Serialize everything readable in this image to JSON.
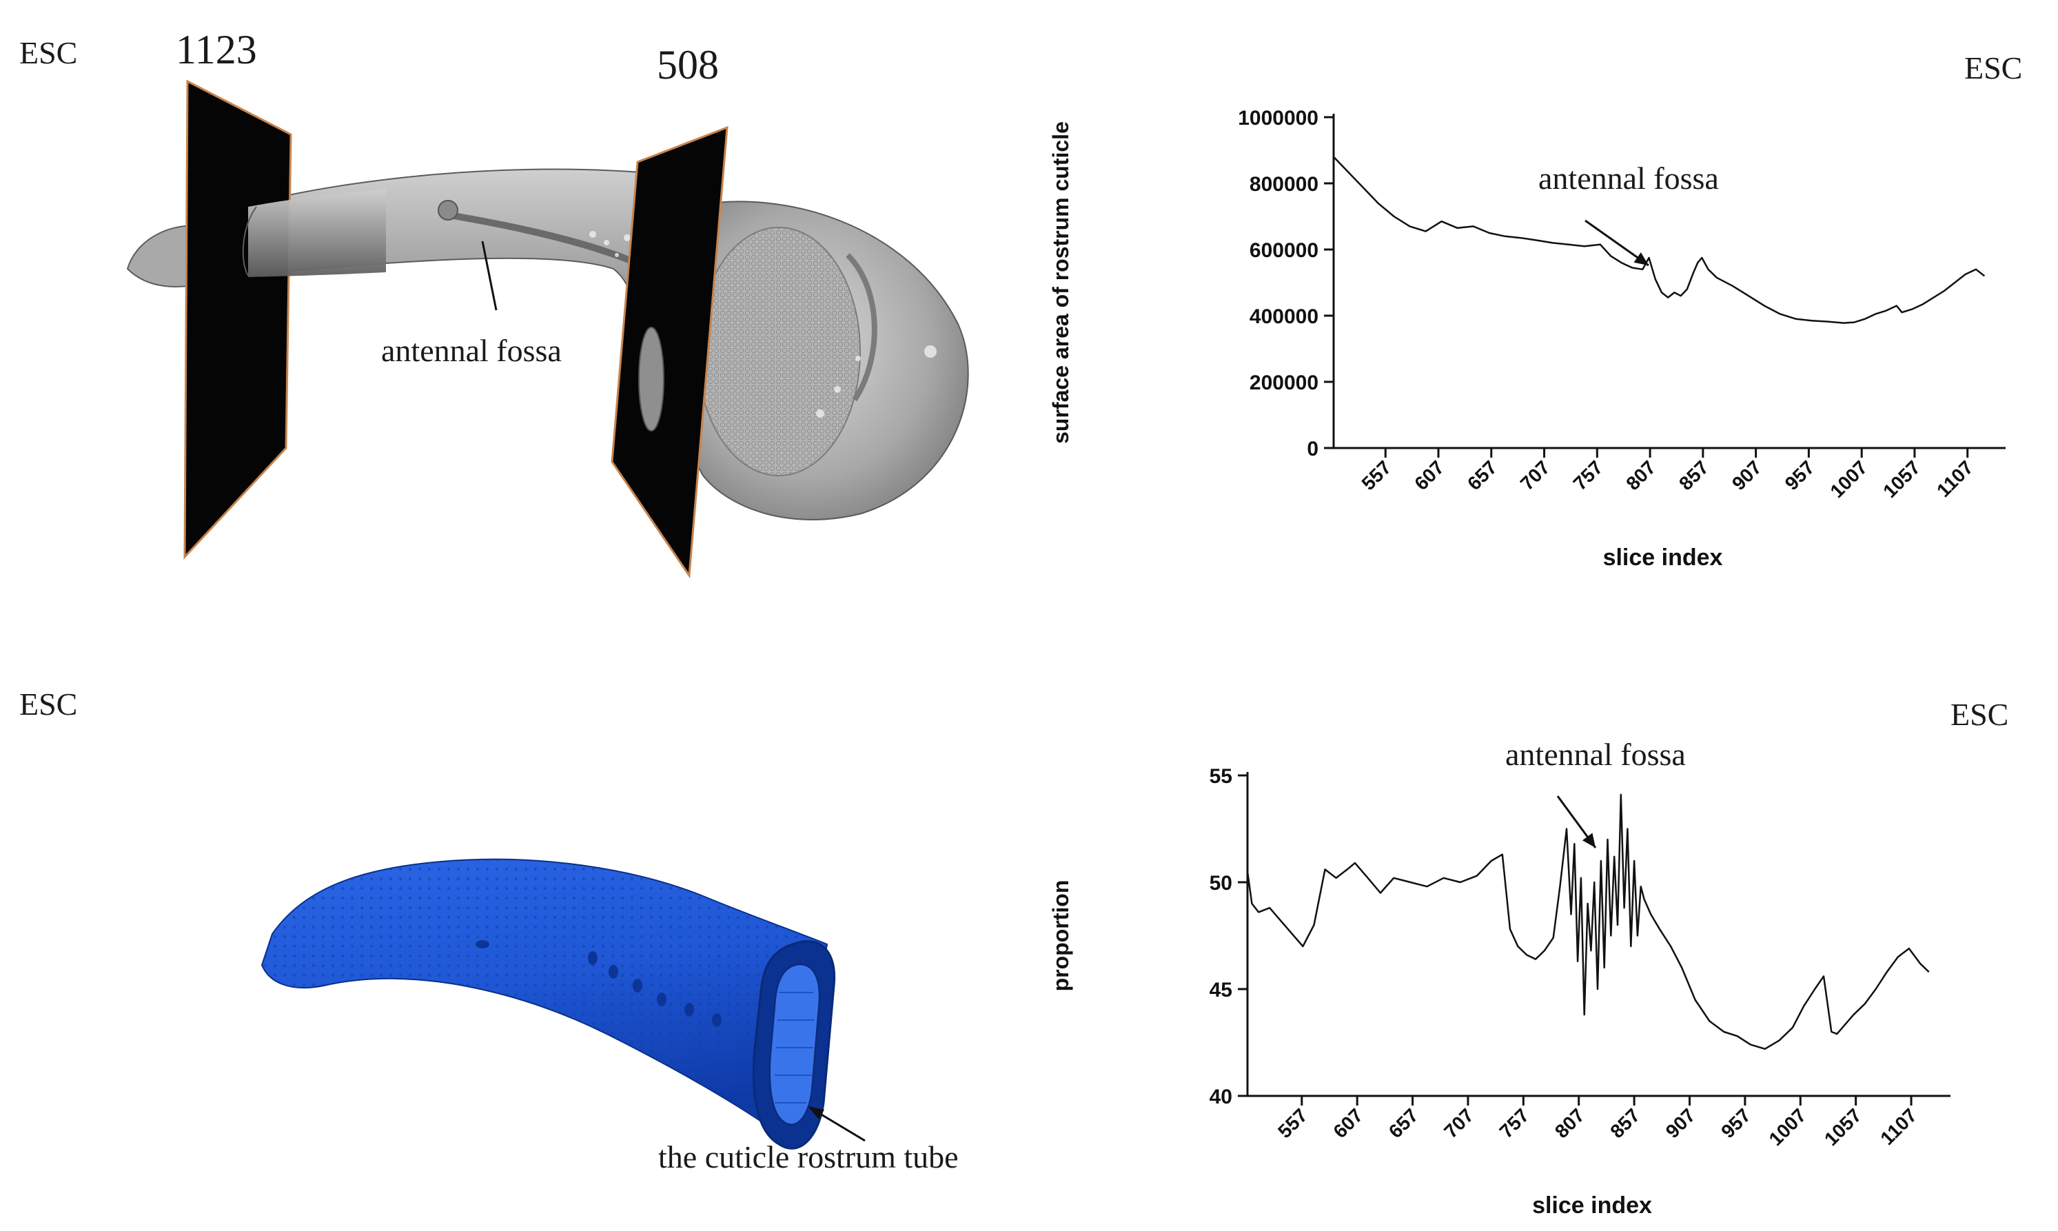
{
  "panels": {
    "top_left": {
      "tag": "ESC",
      "slice_left": "1123",
      "slice_right": "508",
      "annotation": "antennal fossa"
    },
    "bottom_left": {
      "tag": "ESC",
      "annotation": "the cuticle rostrum tube"
    },
    "top_right": {
      "tag": "ESC",
      "annotation": "antennal fossa"
    },
    "bottom_right": {
      "tag": "ESC",
      "annotation": "antennal fossa"
    }
  },
  "colors": {
    "render_gray": "#9a9a9a",
    "tube_blue": "#1f57d6",
    "plane_black": "#050505",
    "plane_edge": "#c8844c",
    "line": "#111111"
  },
  "chart_data": [
    {
      "type": "line",
      "xlabel": "slice index",
      "ylabel": "surface area of rostrum cuticle",
      "ylim": [
        0,
        1000000
      ],
      "yticks": [
        "0",
        "200000",
        "400000",
        "600000",
        "800000",
        "1000000"
      ],
      "xticks": [
        "557",
        "607",
        "657",
        "707",
        "757",
        "807",
        "857",
        "907",
        "957",
        "1007",
        "1057",
        "1107"
      ],
      "xlim": [
        508,
        1130
      ],
      "grid": false,
      "x": [
        508,
        520,
        535,
        550,
        565,
        580,
        595,
        610,
        625,
        640,
        655,
        670,
        685,
        700,
        715,
        730,
        745,
        760,
        770,
        780,
        790,
        800,
        806,
        812,
        818,
        824,
        830,
        836,
        842,
        848,
        852,
        856,
        862,
        870,
        885,
        900,
        915,
        930,
        945,
        960,
        975,
        990,
        1000,
        1010,
        1020,
        1030,
        1040,
        1045,
        1055,
        1065,
        1075,
        1085,
        1095,
        1105,
        1115,
        1123
      ],
      "y": [
        880000,
        840000,
        790000,
        740000,
        700000,
        670000,
        655000,
        685000,
        665000,
        670000,
        650000,
        640000,
        635000,
        628000,
        620000,
        615000,
        610000,
        615000,
        580000,
        560000,
        545000,
        540000,
        575000,
        510000,
        470000,
        455000,
        470000,
        460000,
        480000,
        530000,
        560000,
        575000,
        540000,
        515000,
        490000,
        460000,
        430000,
        405000,
        390000,
        385000,
        382000,
        378000,
        380000,
        390000,
        405000,
        415000,
        430000,
        410000,
        420000,
        435000,
        455000,
        475000,
        500000,
        525000,
        540000,
        520000
      ]
    },
    {
      "type": "line",
      "xlabel": "slice index",
      "ylabel": "proportion",
      "ylim": [
        40,
        55
      ],
      "yticks": [
        "40",
        "45",
        "50",
        "55"
      ],
      "xticks": [
        "557",
        "607",
        "657",
        "707",
        "757",
        "807",
        "857",
        "907",
        "957",
        "1007",
        "1057",
        "1107"
      ],
      "xlim": [
        508,
        1130
      ],
      "grid": false,
      "x": [
        508,
        512,
        518,
        528,
        538,
        548,
        558,
        568,
        578,
        588,
        598,
        605,
        615,
        628,
        640,
        655,
        670,
        685,
        700,
        715,
        728,
        738,
        745,
        752,
        760,
        768,
        776,
        784,
        790,
        796,
        800,
        803,
        806,
        809,
        812,
        815,
        818,
        821,
        824,
        827,
        830,
        833,
        836,
        839,
        842,
        845,
        848,
        851,
        854,
        857,
        860,
        863,
        866,
        872,
        880,
        890,
        900,
        912,
        925,
        938,
        950,
        962,
        975,
        988,
        1000,
        1010,
        1020,
        1028,
        1035,
        1040,
        1045,
        1055,
        1065,
        1075,
        1085,
        1095,
        1105,
        1115,
        1123
      ],
      "y": [
        50.5,
        49,
        48.6,
        48.8,
        48.2,
        47.6,
        47.0,
        48.0,
        50.6,
        50.2,
        50.6,
        50.9,
        50.3,
        49.5,
        50.2,
        50.0,
        49.8,
        50.2,
        50.0,
        50.3,
        51.0,
        51.3,
        47.8,
        47.0,
        46.6,
        46.4,
        46.8,
        47.4,
        49.8,
        52.5,
        48.5,
        51.8,
        46.3,
        50.2,
        43.8,
        49.0,
        46.8,
        50.0,
        45.0,
        51.0,
        46.0,
        52.0,
        47.5,
        51.2,
        48.0,
        54.1,
        48.8,
        52.5,
        47.0,
        51.0,
        47.5,
        49.8,
        49.2,
        48.5,
        47.8,
        47.0,
        46.0,
        44.5,
        43.5,
        43.0,
        42.8,
        42.4,
        42.2,
        42.6,
        43.2,
        44.2,
        45.0,
        45.6,
        43.0,
        42.9,
        43.2,
        43.8,
        44.3,
        45.0,
        45.8,
        46.5,
        46.9,
        46.2,
        45.8
      ]
    }
  ]
}
